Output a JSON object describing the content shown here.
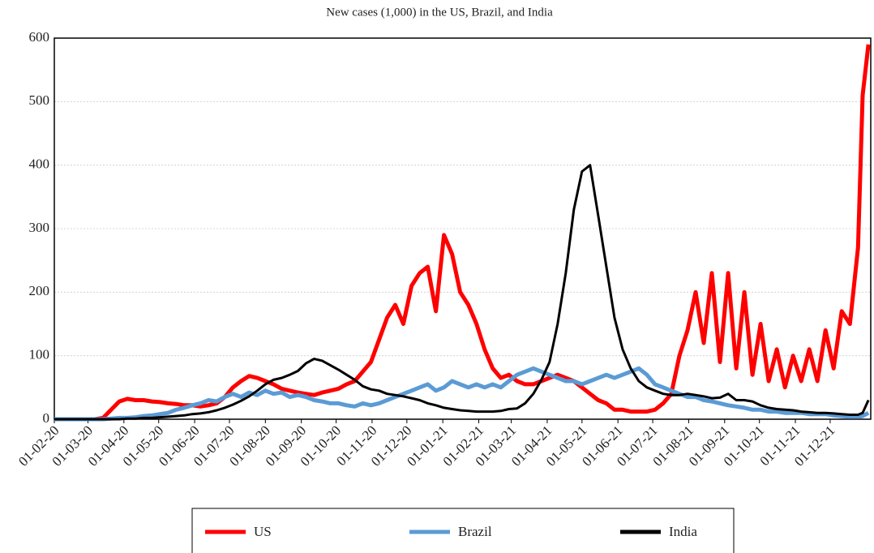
{
  "chart_data": {
    "type": "line",
    "title": "New cases (1,000) in the US, Brazil, and India",
    "x": [
      "2020-02-01",
      "2020-02-08",
      "2020-02-15",
      "2020-02-22",
      "2020-02-29",
      "2020-03-07",
      "2020-03-14",
      "2020-03-21",
      "2020-03-28",
      "2020-04-04",
      "2020-04-11",
      "2020-04-18",
      "2020-04-25",
      "2020-05-02",
      "2020-05-09",
      "2020-05-16",
      "2020-05-23",
      "2020-05-30",
      "2020-06-06",
      "2020-06-13",
      "2020-06-20",
      "2020-06-27",
      "2020-07-04",
      "2020-07-11",
      "2020-07-18",
      "2020-07-25",
      "2020-08-01",
      "2020-08-08",
      "2020-08-15",
      "2020-08-22",
      "2020-08-29",
      "2020-09-05",
      "2020-09-12",
      "2020-09-19",
      "2020-09-26",
      "2020-10-03",
      "2020-10-10",
      "2020-10-17",
      "2020-10-24",
      "2020-10-31",
      "2020-11-07",
      "2020-11-14",
      "2020-11-21",
      "2020-11-28",
      "2020-12-05",
      "2020-12-12",
      "2020-12-19",
      "2020-12-26",
      "2021-01-02",
      "2021-01-09",
      "2021-01-16",
      "2021-01-23",
      "2021-01-30",
      "2021-02-06",
      "2021-02-13",
      "2021-02-20",
      "2021-02-27",
      "2021-03-06",
      "2021-03-13",
      "2021-03-20",
      "2021-03-27",
      "2021-04-03",
      "2021-04-10",
      "2021-04-17",
      "2021-04-24",
      "2021-05-01",
      "2021-05-08",
      "2021-05-15",
      "2021-05-22",
      "2021-05-29",
      "2021-06-05",
      "2021-06-12",
      "2021-06-19",
      "2021-06-26",
      "2021-07-03",
      "2021-07-10",
      "2021-07-17",
      "2021-07-24",
      "2021-07-31",
      "2021-08-07",
      "2021-08-14",
      "2021-08-21",
      "2021-08-28",
      "2021-09-04",
      "2021-09-11",
      "2021-09-18",
      "2021-09-25",
      "2021-10-02",
      "2021-10-09",
      "2021-10-16",
      "2021-10-23",
      "2021-10-30",
      "2021-11-06",
      "2021-11-13",
      "2021-11-20",
      "2021-11-27",
      "2021-12-04",
      "2021-12-11",
      "2021-12-18",
      "2021-12-25",
      "2021-12-29",
      "2022-01-03"
    ],
    "series": [
      {
        "name": "US",
        "color": "#ff0000",
        "values": [
          0,
          0,
          0,
          0,
          0,
          0,
          2,
          15,
          28,
          32,
          30,
          30,
          28,
          27,
          25,
          24,
          22,
          22,
          20,
          22,
          25,
          35,
          50,
          60,
          68,
          65,
          60,
          55,
          48,
          45,
          42,
          40,
          38,
          42,
          45,
          48,
          55,
          60,
          75,
          90,
          125,
          160,
          180,
          150,
          210,
          230,
          240,
          170,
          290,
          260,
          200,
          180,
          150,
          110,
          80,
          65,
          70,
          60,
          55,
          55,
          60,
          65,
          70,
          65,
          60,
          50,
          40,
          30,
          25,
          15,
          15,
          12,
          12,
          12,
          15,
          25,
          40,
          100,
          140,
          200,
          120,
          230,
          90,
          230,
          80,
          200,
          70,
          150,
          60,
          110,
          50,
          100,
          60,
          110,
          60,
          140,
          80,
          170,
          150,
          270,
          510,
          590
        ]
      },
      {
        "name": "Brazil",
        "color": "#5b9bd5",
        "values": [
          0,
          0,
          0,
          0,
          0,
          0,
          0,
          1,
          2,
          2,
          3,
          5,
          6,
          8,
          10,
          15,
          18,
          22,
          25,
          30,
          28,
          35,
          40,
          35,
          42,
          38,
          45,
          40,
          42,
          35,
          38,
          35,
          30,
          28,
          25,
          25,
          22,
          20,
          25,
          22,
          25,
          30,
          35,
          40,
          45,
          50,
          55,
          45,
          50,
          60,
          55,
          50,
          55,
          50,
          55,
          50,
          60,
          70,
          75,
          80,
          75,
          70,
          65,
          60,
          60,
          55,
          60,
          65,
          70,
          65,
          70,
          75,
          80,
          70,
          55,
          50,
          45,
          40,
          35,
          35,
          30,
          28,
          25,
          22,
          20,
          18,
          15,
          15,
          12,
          12,
          10,
          10,
          10,
          8,
          8,
          8,
          6,
          5,
          4,
          4,
          5,
          10
        ]
      },
      {
        "name": "India",
        "color": "#000000",
        "values": [
          0,
          0,
          0,
          0,
          0,
          0,
          0,
          0,
          0,
          1,
          1,
          2,
          2,
          3,
          4,
          5,
          6,
          8,
          9,
          11,
          14,
          18,
          23,
          29,
          36,
          45,
          55,
          62,
          65,
          70,
          76,
          88,
          95,
          92,
          85,
          78,
          70,
          62,
          52,
          47,
          45,
          40,
          38,
          36,
          33,
          30,
          25,
          22,
          18,
          16,
          14,
          13,
          12,
          12,
          12,
          13,
          16,
          17,
          25,
          40,
          62,
          90,
          150,
          230,
          330,
          390,
          400,
          320,
          240,
          160,
          110,
          80,
          60,
          50,
          45,
          40,
          38,
          38,
          40,
          38,
          36,
          33,
          34,
          40,
          30,
          30,
          28,
          22,
          18,
          16,
          15,
          14,
          12,
          11,
          10,
          10,
          9,
          8,
          7,
          7,
          10,
          30
        ]
      }
    ],
    "xlim": [
      "2020-02-01",
      "2022-01-05"
    ],
    "xticks": [
      {
        "value": "2020-02-01",
        "label": "01-02-20"
      },
      {
        "value": "2020-03-01",
        "label": "01-03-20"
      },
      {
        "value": "2020-04-01",
        "label": "01-04-20"
      },
      {
        "value": "2020-05-01",
        "label": "01-05-20"
      },
      {
        "value": "2020-06-01",
        "label": "01-06-20"
      },
      {
        "value": "2020-07-01",
        "label": "01-07-20"
      },
      {
        "value": "2020-08-01",
        "label": "01-08-20"
      },
      {
        "value": "2020-09-01",
        "label": "01-09-20"
      },
      {
        "value": "2020-10-01",
        "label": "01-10-20"
      },
      {
        "value": "2020-11-01",
        "label": "01-11-20"
      },
      {
        "value": "2020-12-01",
        "label": "01-12-20"
      },
      {
        "value": "2021-01-01",
        "label": "01-01-21"
      },
      {
        "value": "2021-02-01",
        "label": "01-02-21"
      },
      {
        "value": "2021-03-01",
        "label": "01-03-21"
      },
      {
        "value": "2021-04-01",
        "label": "01-04-21"
      },
      {
        "value": "2021-05-01",
        "label": "01-05-21"
      },
      {
        "value": "2021-06-01",
        "label": "01-06-21"
      },
      {
        "value": "2021-07-01",
        "label": "01-07-21"
      },
      {
        "value": "2021-08-01",
        "label": "01-08-21"
      },
      {
        "value": "2021-09-01",
        "label": "01-09-21"
      },
      {
        "value": "2021-10-01",
        "label": "01-10-21"
      },
      {
        "value": "2021-11-01",
        "label": "01-11-21"
      },
      {
        "value": "2021-12-01",
        "label": "01-12-21"
      }
    ],
    "ylim": [
      0,
      600
    ],
    "yticks": [
      0,
      100,
      200,
      300,
      400,
      500,
      600
    ],
    "grid": true,
    "legend": "bottom"
  }
}
